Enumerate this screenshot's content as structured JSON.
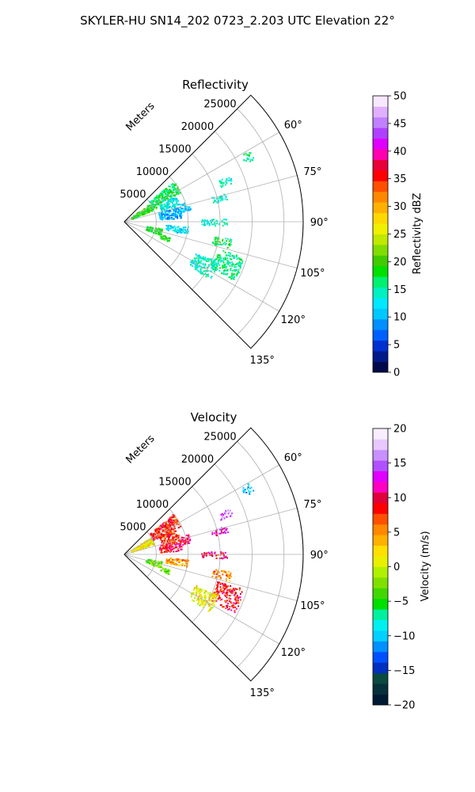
{
  "figure_title": "SKYLER-HU  SN14_202  0723_2.203 UTC Elevation 22°",
  "colors": {
    "grid": "#b0b0b0",
    "frame": "#000000",
    "reflectivity_colormap": [
      "#000a4a",
      "#001a8a",
      "#0030d0",
      "#0060ff",
      "#0090ff",
      "#00c8ff",
      "#00e8ff",
      "#00f0c0",
      "#00f070",
      "#00e000",
      "#40cc00",
      "#80dd00",
      "#c0e800",
      "#f0f000",
      "#ffd800",
      "#ffb000",
      "#ff8800",
      "#ff5000",
      "#ff0000",
      "#e8003a",
      "#ff00b0",
      "#e000ff",
      "#b040ff",
      "#c080ff",
      "#e0b0ff",
      "#f8e8ff"
    ],
    "velocity_colormap": [
      "#001a33",
      "#06303a",
      "#0a4a40",
      "#0030c0",
      "#0050ff",
      "#0090ff",
      "#00d0ff",
      "#00f0f0",
      "#00f0a0",
      "#00e000",
      "#40d800",
      "#80e000",
      "#b0f000",
      "#e8f000",
      "#ffe000",
      "#ffb000",
      "#ff8800",
      "#ff5000",
      "#ff0000",
      "#e0003a",
      "#ff00c0",
      "#e000ff",
      "#b050ff",
      "#c890ff",
      "#e8c8ff",
      "#f8eeff"
    ]
  },
  "chart_data": [
    {
      "type": "heatmap",
      "title": "Reflectivity",
      "radial_axis_label": "Meters",
      "radial_ticks": [
        "5000",
        "10000",
        "15000",
        "20000",
        "25000"
      ],
      "radial_tick_values": [
        5000,
        10000,
        15000,
        20000,
        25000
      ],
      "r_max": 28000,
      "angular_ticks": [
        "60°",
        "75°",
        "90°",
        "105°",
        "120°",
        "135°"
      ],
      "angular_tick_values": [
        60,
        75,
        90,
        105,
        120,
        135
      ],
      "theta_range_deg": [
        45,
        135
      ],
      "colorbar": {
        "label": "Reflectivity dBZ",
        "range": [
          0,
          50
        ],
        "ticks": [
          "0",
          "5",
          "10",
          "15",
          "20",
          "25",
          "30",
          "35",
          "40",
          "45",
          "50"
        ]
      },
      "echo_regions": [
        {
          "az": [
            54,
            67
          ],
          "range": [
            1200,
            5500
          ],
          "value": 19
        },
        {
          "az": [
            50,
            62
          ],
          "range": [
            5000,
            10000
          ],
          "value": 17
        },
        {
          "az": [
            63,
            73
          ],
          "range": [
            6000,
            9000
          ],
          "value": 13
        },
        {
          "az": [
            74,
            86
          ],
          "range": [
            5500,
            9000
          ],
          "value": 10
        },
        {
          "az": [
            72,
            80
          ],
          "range": [
            9000,
            10500
          ],
          "value": 11
        },
        {
          "az": [
            94,
            101
          ],
          "range": [
            6500,
            10000
          ],
          "value": 12
        },
        {
          "az": [
            100,
            110
          ],
          "range": [
            3500,
            6000
          ],
          "value": 18
        },
        {
          "az": [
            108,
            114
          ],
          "range": [
            6000,
            7500
          ],
          "value": 19
        },
        {
          "az": [
            106,
            118
          ],
          "range": [
            15000,
            19500
          ],
          "value": 16
        },
        {
          "az": [
            99,
            104
          ],
          "range": [
            14000,
            17000
          ],
          "value": 17
        },
        {
          "az": [
            113,
            124
          ],
          "range": [
            12000,
            16000
          ],
          "value": 14
        },
        {
          "az": [
            60,
            64
          ],
          "range": [
            21000,
            22500
          ],
          "value": 16
        },
        {
          "az": [
            66,
            70
          ],
          "range": [
            16000,
            18000
          ],
          "value": 14
        },
        {
          "az": [
            74,
            78
          ],
          "range": [
            14000,
            16500
          ],
          "value": 14
        },
        {
          "az": [
            88,
            92
          ],
          "range": [
            12000,
            16000
          ],
          "value": 14
        }
      ]
    },
    {
      "type": "heatmap",
      "title": "Velocity",
      "radial_axis_label": "Meters",
      "radial_ticks": [
        "5000",
        "10000",
        "15000",
        "20000",
        "25000"
      ],
      "radial_tick_values": [
        5000,
        10000,
        15000,
        20000,
        25000
      ],
      "r_max": 28000,
      "angular_ticks": [
        "60°",
        "75°",
        "90°",
        "105°",
        "120°",
        "135°"
      ],
      "angular_tick_values": [
        60,
        75,
        90,
        105,
        120,
        135
      ],
      "theta_range_deg": [
        45,
        135
      ],
      "colorbar": {
        "label": "Velocity (m/s)",
        "range": [
          -20,
          20
        ],
        "ticks": [
          "−20",
          "−15",
          "−10",
          "−5",
          "0",
          "5",
          "10",
          "15",
          "20"
        ]
      },
      "echo_regions": [
        {
          "az": [
            56,
            70
          ],
          "range": [
            1200,
            5000
          ],
          "value": 2
        },
        {
          "az": [
            50,
            63
          ],
          "range": [
            5000,
            10000
          ],
          "value": 8
        },
        {
          "az": [
            63,
            73
          ],
          "range": [
            6000,
            9000
          ],
          "value": 8
        },
        {
          "az": [
            74,
            86
          ],
          "range": [
            5500,
            9000
          ],
          "value": 9
        },
        {
          "az": [
            72,
            80
          ],
          "range": [
            9000,
            10500
          ],
          "value": 10
        },
        {
          "az": [
            94,
            101
          ],
          "range": [
            6500,
            10000
          ],
          "value": 5
        },
        {
          "az": [
            100,
            110
          ],
          "range": [
            3500,
            6000
          ],
          "value": -3
        },
        {
          "az": [
            108,
            114
          ],
          "range": [
            6000,
            7500
          ],
          "value": -3
        },
        {
          "az": [
            106,
            118
          ],
          "range": [
            15000,
            19500
          ],
          "value": 9
        },
        {
          "az": [
            99,
            104
          ],
          "range": [
            14000,
            17000
          ],
          "value": 5
        },
        {
          "az": [
            113,
            124
          ],
          "range": [
            12000,
            16000
          ],
          "value": 1
        },
        {
          "az": [
            60,
            64
          ],
          "range": [
            21000,
            22500
          ],
          "value": -11
        },
        {
          "az": [
            66,
            70
          ],
          "range": [
            16000,
            18000
          ],
          "value": 15
        },
        {
          "az": [
            74,
            78
          ],
          "range": [
            14000,
            16500
          ],
          "value": 12
        },
        {
          "az": [
            88,
            92
          ],
          "range": [
            12000,
            16000
          ],
          "value": 10
        }
      ]
    }
  ]
}
